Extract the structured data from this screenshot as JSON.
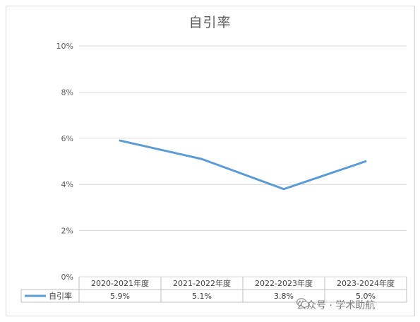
{
  "chart_data": {
    "type": "line",
    "title": "自引率",
    "categories": [
      "2020-2021年度",
      "2021-2022年度",
      "2022-2023年度",
      "2023-2024年度"
    ],
    "series": [
      {
        "name": "自引率",
        "values": [
          5.9,
          5.1,
          3.8,
          5.0
        ],
        "labels": [
          "5.9%",
          "5.1%",
          "3.8%",
          "5.0%"
        ],
        "color": "#5b9bd5"
      }
    ],
    "ylim": [
      0,
      10
    ],
    "yticks": [
      0,
      2,
      4,
      6,
      8,
      10
    ],
    "ytick_labels": [
      "0%",
      "2%",
      "4%",
      "6%",
      "8%",
      "10%"
    ],
    "grid": true,
    "legend": "data-table"
  },
  "watermark": {
    "text": "公众号 · 学术助航",
    "icon": "wechat-icon"
  }
}
